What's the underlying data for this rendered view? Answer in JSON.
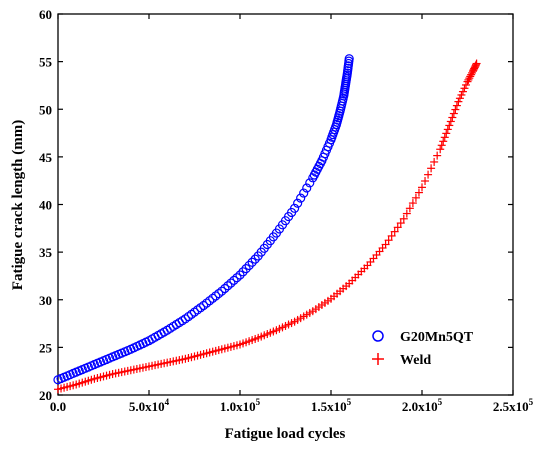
{
  "chart_data": {
    "type": "scatter",
    "title": "",
    "xlabel": "Fatigue load cycles",
    "ylabel": "Fatigue crack length (mm)",
    "xlim": [
      0,
      250000
    ],
    "ylim": [
      20,
      60
    ],
    "x_ticks": [
      {
        "value": 0,
        "label": "0.0"
      },
      {
        "value": 50000,
        "base": "5.0x10",
        "exp": "4"
      },
      {
        "value": 100000,
        "base": "1.0x10",
        "exp": "5"
      },
      {
        "value": 150000,
        "base": "1.5x10",
        "exp": "5"
      },
      {
        "value": 200000,
        "base": "2.0x10",
        "exp": "5"
      },
      {
        "value": 250000,
        "base": "2.5x10",
        "exp": "5"
      }
    ],
    "y_ticks": [
      20,
      25,
      30,
      35,
      40,
      45,
      50,
      55,
      60
    ],
    "grid": false,
    "legend_position": "bottom-right",
    "series": [
      {
        "name": "G20Mn5QT",
        "marker": "open-circle",
        "color": "#0000ff",
        "x": [
          0,
          10000,
          20000,
          30000,
          40000,
          50000,
          60000,
          70000,
          80000,
          90000,
          100000,
          110000,
          120000,
          130000,
          140000,
          145000,
          150000,
          153000,
          155000,
          157000,
          158000,
          159000,
          160000
        ],
        "y": [
          21.6,
          22.4,
          23.2,
          24.0,
          24.8,
          25.7,
          26.8,
          28.0,
          29.4,
          30.9,
          32.6,
          34.6,
          37.0,
          39.6,
          42.8,
          44.6,
          46.8,
          48.4,
          49.8,
          51.4,
          52.6,
          53.8,
          55.3
        ]
      },
      {
        "name": "Weld",
        "marker": "plus",
        "color": "#ff0000",
        "x": [
          0,
          10000,
          20000,
          30000,
          40000,
          50000,
          60000,
          70000,
          80000,
          90000,
          100000,
          110000,
          120000,
          130000,
          140000,
          150000,
          160000,
          170000,
          180000,
          190000,
          200000,
          210000,
          215000,
          220000,
          225000,
          228000,
          230000
        ],
        "y": [
          20.6,
          21.1,
          21.7,
          22.2,
          22.6,
          23.0,
          23.4,
          23.8,
          24.3,
          24.8,
          25.3,
          26.0,
          26.8,
          27.7,
          28.8,
          30.1,
          31.7,
          33.6,
          35.8,
          38.5,
          41.8,
          45.8,
          48.3,
          50.8,
          52.9,
          54.0,
          54.8
        ]
      }
    ]
  }
}
